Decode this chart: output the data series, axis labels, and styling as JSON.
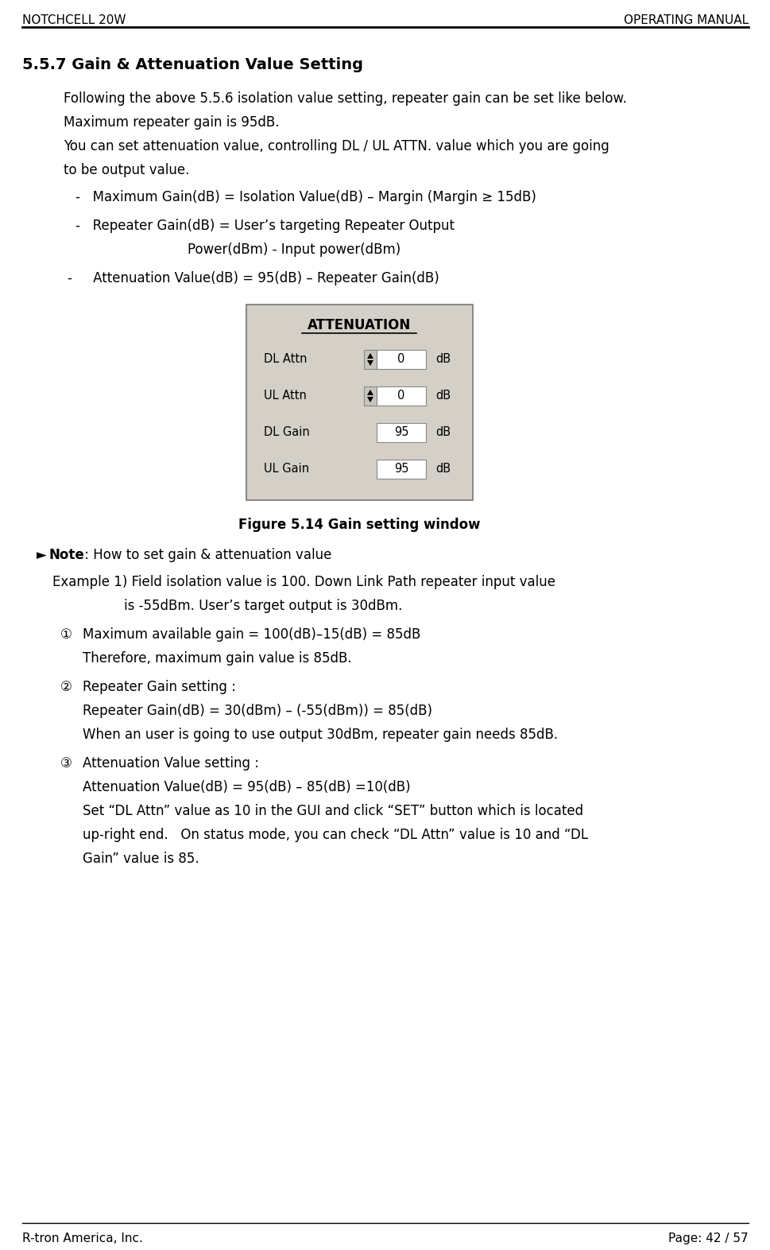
{
  "header_left": "NOTCHCELL 20W",
  "header_right": "OPERATING MANUAL",
  "footer_left": "R-tron America, Inc.",
  "footer_right": "Page: 42 / 57",
  "section_title": "5.5.7 Gain & Attenuation Value Setting",
  "para1": "Following the above 5.5.6 isolation value setting, repeater gain can be set like below.",
  "para2": "Maximum repeater gain is 95dB.",
  "para3a": "You can set attenuation value, controlling DL / UL ATTN. value which you are going",
  "para3b": "to be output value.",
  "bullet1": "-   Maximum Gain(dB) = Isolation Value(dB) – Margin (Margin ≥ 15dB)",
  "bullet2": "-   Repeater Gain(dB) = User’s targeting Repeater Output",
  "bullet2b": "Power(dBm) - Input power(dBm)",
  "bullet3": "-     Attenuation Value(dB) = 95(dB) – Repeater Gain(dB)",
  "figure_caption": "Figure 5.14 Gain setting window",
  "note_arrow": "►",
  "note_bold": "Note",
  "note_rest": " : How to set gain & attenuation value",
  "example_line1": "Example 1) Field isolation value is 100. Down Link Path repeater input value",
  "example_line2": "is -55dBm. User’s target output is 30dBm.",
  "step1_num": "①",
  "step1_text": "Maximum available gain = 100(dB)–15(dB) = 85dB",
  "step1b": "Therefore, maximum gain value is 85dB.",
  "step2_num": "②",
  "step2_text": "Repeater Gain setting :",
  "step2b": "Repeater Gain(dB) = 30(dBm) – (-55(dBm)) = 85(dB)",
  "step2c": "When an user is going to use output 30dBm, repeater gain needs 85dB.",
  "step3_num": "③",
  "step3_text": "Attenuation Value setting :",
  "step3b": "Attenuation Value(dB) = 95(dB) – 85(dB) =10(dB)",
  "step3c": "Set “DL Attn” value as 10 in the GUI and click “SET” button which is located",
  "step3d": "up-right end.   On status mode, you can check “DL Attn” value is 10 and “DL",
  "step3e": "Gain” value is 85.",
  "bg_color": "#ffffff",
  "text_color": "#000000",
  "header_font_size": 11,
  "body_font_size": 12,
  "section_font_size": 14,
  "gui_bg": "#d4d0c8",
  "attn_title": "ATTENUATION",
  "rows": [
    {
      "label": "DL Attn",
      "has_spinner": true,
      "value": "0",
      "unit": "dB"
    },
    {
      "label": "UL Attn",
      "has_spinner": true,
      "value": "0",
      "unit": "dB"
    },
    {
      "label": "DL Gain",
      "has_spinner": false,
      "value": "95",
      "unit": "dB"
    },
    {
      "label": "UL Gain",
      "has_spinner": false,
      "value": "95",
      "unit": "dB"
    }
  ]
}
